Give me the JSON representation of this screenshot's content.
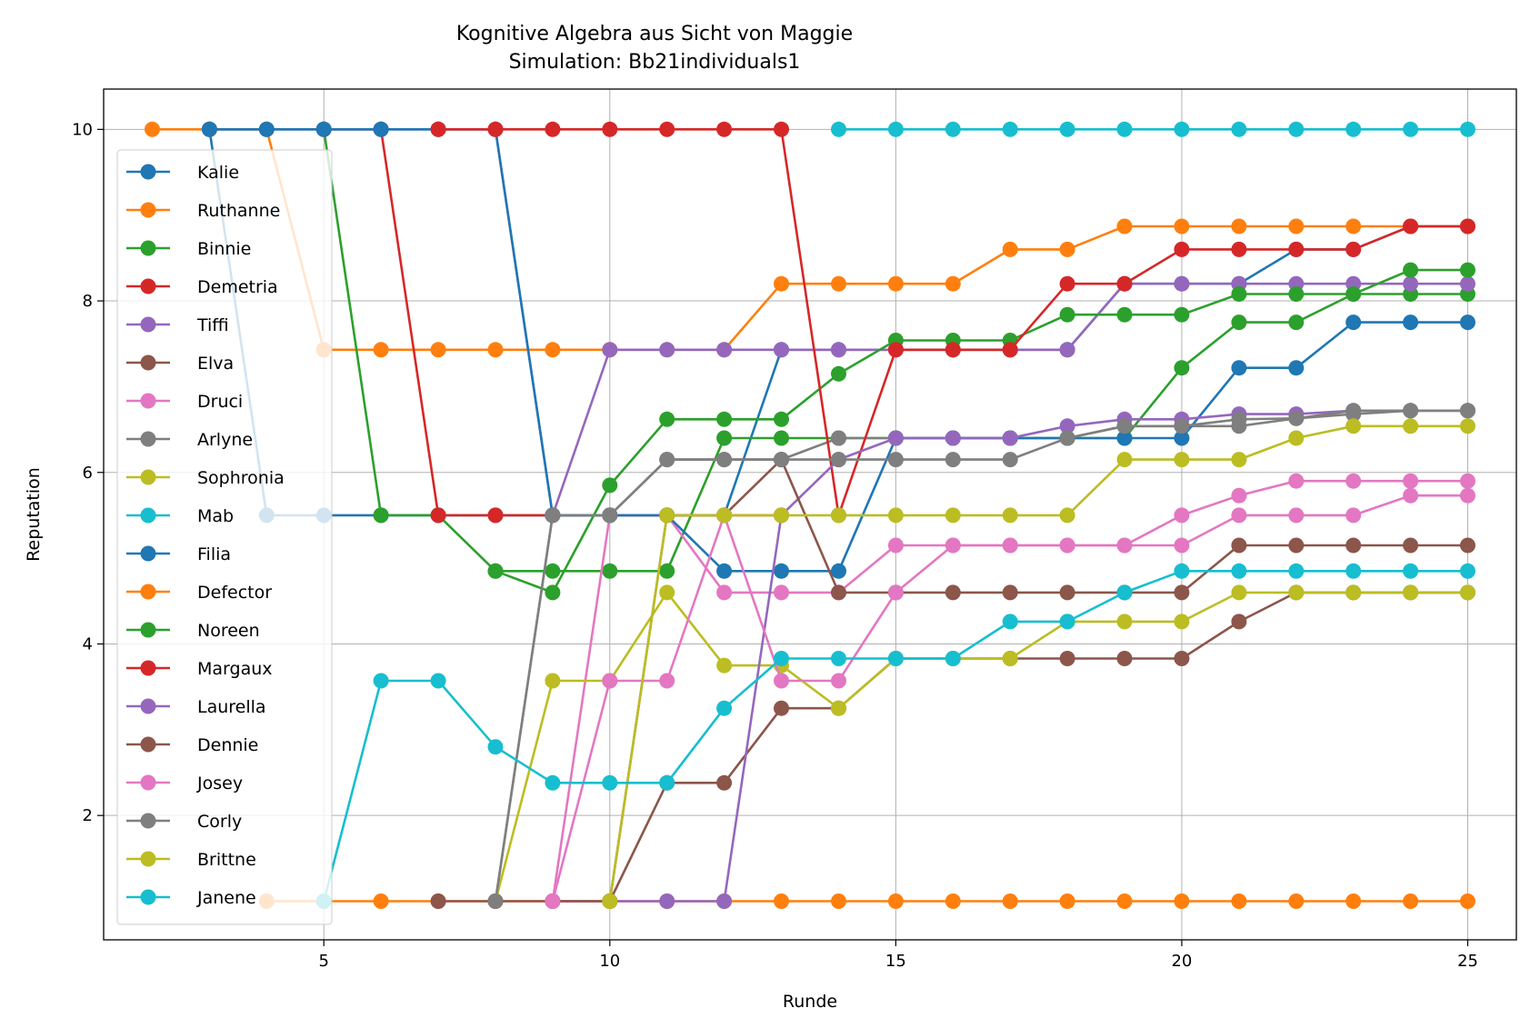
{
  "chart_data": {
    "type": "line",
    "title": "Kognitive Algebra aus Sicht von Maggie",
    "subtitle": "Simulation: Bb21individuals1",
    "xlabel": "Runde",
    "ylabel": "Reputation",
    "xlim": [
      1.15,
      25.85
    ],
    "ylim": [
      0.55,
      10.47
    ],
    "xticks": [
      5,
      10,
      15,
      20,
      25
    ],
    "yticks": [
      2,
      4,
      6,
      8,
      10
    ],
    "grid": true,
    "legend_position": "left",
    "series": [
      {
        "name": "Kalie",
        "color": "#1f77b4",
        "x": [
          3,
          4,
          5,
          6,
          7,
          8,
          9,
          10,
          11,
          12,
          13,
          14,
          15,
          16,
          17,
          18,
          19,
          20,
          21,
          22,
          23,
          24,
          25
        ],
        "y": [
          10,
          5.5,
          5.5,
          5.5,
          5.5,
          5.5,
          5.5,
          5.5,
          5.5,
          5.5,
          7.43,
          7.43,
          7.43,
          7.43,
          7.43,
          7.43,
          8.2,
          8.2,
          8.2,
          8.6,
          8.6,
          8.87,
          8.87
        ]
      },
      {
        "name": "Ruthanne",
        "color": "#ff7f0e",
        "x": [
          2,
          3,
          4,
          5,
          6,
          7,
          8,
          9,
          10,
          11,
          12,
          13,
          14,
          15,
          16,
          17,
          18,
          19,
          20,
          21,
          22,
          23,
          24,
          25
        ],
        "y": [
          10,
          10,
          10,
          7.43,
          7.43,
          7.43,
          7.43,
          7.43,
          7.43,
          7.43,
          7.43,
          8.2,
          8.2,
          8.2,
          8.2,
          8.6,
          8.6,
          8.87,
          8.87,
          8.87,
          8.87,
          8.87,
          8.87,
          8.87
        ]
      },
      {
        "name": "Binnie",
        "color": "#2ca02c",
        "x": [
          5,
          6,
          7,
          8,
          9,
          10,
          11,
          12,
          13,
          14,
          15,
          16,
          17,
          18,
          19,
          20,
          21,
          22,
          23,
          24,
          25
        ],
        "y": [
          10,
          5.5,
          5.5,
          4.85,
          4.85,
          4.85,
          4.85,
          6.4,
          6.4,
          6.4,
          6.4,
          6.4,
          6.4,
          6.4,
          6.4,
          7.22,
          7.75,
          7.75,
          8.08,
          8.08,
          8.08
        ]
      },
      {
        "name": "Demetria",
        "color": "#d62728",
        "x": [
          5,
          6,
          7,
          8,
          9,
          10,
          11,
          12,
          13
        ],
        "y": [
          10,
          10,
          5.5,
          5.5,
          5.5,
          5.5,
          5.5,
          5.5,
          5.5
        ]
      },
      {
        "name": "Tiffi",
        "color": "#9467bd",
        "x": [
          3,
          4,
          5,
          6,
          7,
          8,
          9,
          10,
          11,
          12,
          13,
          14,
          15,
          16,
          17,
          18,
          19,
          20,
          21,
          22,
          23,
          24,
          25
        ],
        "y": [
          10,
          10,
          10,
          10,
          10,
          10,
          5.5,
          7.43,
          7.43,
          7.43,
          7.43,
          7.43,
          7.43,
          7.43,
          7.43,
          7.43,
          8.2,
          8.2,
          8.2,
          8.2,
          8.2,
          8.2,
          8.2
        ]
      },
      {
        "name": "Elva",
        "color": "#8c564b",
        "x": [
          10,
          11,
          12,
          13,
          14,
          15,
          16,
          17,
          18,
          19,
          20,
          21,
          22,
          23,
          24,
          25
        ],
        "y": [
          1,
          2.38,
          2.38,
          3.25,
          3.25,
          3.83,
          3.83,
          3.83,
          3.83,
          3.83,
          3.83,
          4.26,
          4.6,
          4.6,
          4.6,
          4.6
        ]
      },
      {
        "name": "Druci",
        "color": "#e377c2",
        "x": [
          9,
          10,
          11,
          12,
          13,
          14,
          15,
          16,
          17,
          18,
          19,
          20,
          21,
          22,
          23,
          24,
          25
        ],
        "y": [
          1,
          5.5,
          5.5,
          4.6,
          4.6,
          4.6,
          5.15,
          5.15,
          5.15,
          5.15,
          5.15,
          5.15,
          5.5,
          5.5,
          5.5,
          5.73,
          5.73
        ]
      },
      {
        "name": "Arlyne",
        "color": "#7f7f7f",
        "x": [
          8,
          9,
          10,
          11,
          12,
          13,
          14,
          15,
          16,
          17,
          18,
          19,
          20,
          21,
          22,
          23,
          24,
          25
        ],
        "y": [
          1,
          5.5,
          5.5,
          6.15,
          6.15,
          6.15,
          6.4,
          6.4,
          6.4,
          6.4,
          6.4,
          6.54,
          6.54,
          6.54,
          6.63,
          6.68,
          6.72,
          6.72
        ]
      },
      {
        "name": "Sophronia",
        "color": "#bcbd22",
        "x": [
          8,
          9,
          10,
          11,
          12,
          13,
          14,
          15,
          16,
          17,
          18,
          19,
          20,
          21,
          22,
          23,
          24,
          25
        ],
        "y": [
          1,
          3.57,
          3.57,
          4.6,
          3.75,
          3.75,
          3.25,
          3.83,
          3.83,
          3.83,
          4.26,
          4.26,
          4.26,
          4.6,
          4.6,
          4.6,
          4.6,
          4.6
        ]
      },
      {
        "name": "Mab",
        "color": "#17becf",
        "x": [
          14,
          15,
          16,
          17,
          18,
          19,
          20,
          21,
          22,
          23,
          24,
          25
        ],
        "y": [
          10,
          10,
          10,
          10,
          10,
          10,
          10,
          10,
          10,
          10,
          10,
          10
        ]
      },
      {
        "name": "Filia",
        "color": "#1f77b4",
        "x": [
          3,
          4,
          5,
          6,
          7,
          8,
          9,
          10,
          11,
          12,
          13,
          14,
          15,
          16,
          17,
          18,
          19,
          20,
          21,
          22,
          23,
          24,
          25
        ],
        "y": [
          10,
          10,
          10,
          10,
          10,
          10,
          5.5,
          5.5,
          5.5,
          4.85,
          4.85,
          4.85,
          6.4,
          6.4,
          6.4,
          6.4,
          6.4,
          6.4,
          7.22,
          7.22,
          7.75,
          7.75,
          7.75
        ]
      },
      {
        "name": "Defector",
        "color": "#ff7f0e",
        "x": [
          4,
          5,
          6,
          7,
          8,
          9,
          10,
          11,
          12,
          13,
          14,
          15,
          16,
          17,
          18,
          19,
          20,
          21,
          22,
          23,
          24,
          25
        ],
        "y": [
          1,
          1,
          1,
          1,
          1,
          1,
          1,
          1,
          1,
          1,
          1,
          1,
          1,
          1,
          1,
          1,
          1,
          1,
          1,
          1,
          1,
          1
        ]
      },
      {
        "name": "Noreen",
        "color": "#2ca02c",
        "x": [
          8,
          9,
          10,
          11,
          12,
          13,
          14,
          15,
          16,
          17,
          18,
          19,
          20,
          21,
          22,
          23,
          24,
          25
        ],
        "y": [
          4.85,
          4.6,
          5.85,
          6.62,
          6.62,
          6.62,
          7.15,
          7.54,
          7.54,
          7.54,
          7.84,
          7.84,
          7.84,
          8.08,
          8.08,
          8.08,
          8.36,
          8.36
        ]
      },
      {
        "name": "Margaux",
        "color": "#d62728",
        "x": [
          7,
          8,
          9,
          10,
          11,
          12,
          13,
          14,
          15,
          16,
          17,
          18,
          19,
          20,
          21,
          22,
          23,
          24,
          25
        ],
        "y": [
          10,
          10,
          10,
          10,
          10,
          10,
          10,
          5.5,
          7.43,
          7.43,
          7.43,
          8.2,
          8.2,
          8.6,
          8.6,
          8.6,
          8.6,
          8.87,
          8.87
        ]
      },
      {
        "name": "Laurella",
        "color": "#9467bd",
        "x": [
          9,
          10,
          11,
          12,
          13,
          14,
          15,
          16,
          17,
          18,
          19,
          20,
          21,
          22,
          23,
          24,
          25
        ],
        "y": [
          1,
          1,
          1,
          1,
          5.5,
          6.15,
          6.4,
          6.4,
          6.4,
          6.54,
          6.62,
          6.62,
          6.68,
          6.68,
          6.72,
          6.72,
          6.72
        ]
      },
      {
        "name": "Dennie",
        "color": "#8c564b",
        "x": [
          7,
          8,
          9,
          10,
          11,
          12,
          13,
          14,
          15,
          16,
          17,
          18,
          19,
          20,
          21,
          22,
          23,
          24,
          25
        ],
        "y": [
          1,
          1,
          1,
          1,
          5.5,
          5.5,
          6.15,
          4.6,
          4.6,
          4.6,
          4.6,
          4.6,
          4.6,
          4.6,
          5.15,
          5.15,
          5.15,
          5.15,
          5.15
        ]
      },
      {
        "name": "Josey",
        "color": "#e377c2",
        "x": [
          9,
          10,
          11,
          12,
          13,
          14,
          15,
          16,
          17,
          18,
          19,
          20,
          21,
          22,
          23,
          24,
          25
        ],
        "y": [
          1,
          3.57,
          3.57,
          5.5,
          3.57,
          3.57,
          4.6,
          5.15,
          5.15,
          5.15,
          5.15,
          5.5,
          5.73,
          5.9,
          5.9,
          5.9,
          5.9
        ]
      },
      {
        "name": "Corly",
        "color": "#7f7f7f",
        "x": [
          8,
          9,
          10,
          11,
          12,
          13,
          14,
          15,
          16,
          17,
          18,
          19,
          20,
          21,
          22,
          23,
          24,
          25
        ],
        "y": [
          1,
          5.5,
          5.5,
          6.15,
          6.15,
          6.15,
          6.15,
          6.15,
          6.15,
          6.15,
          6.4,
          6.54,
          6.54,
          6.62,
          6.63,
          6.72,
          6.72,
          6.72
        ]
      },
      {
        "name": "Brittne",
        "color": "#bcbd22",
        "x": [
          10,
          11,
          12,
          13,
          14,
          15,
          16,
          17,
          18,
          19,
          20,
          21,
          22,
          23,
          24,
          25
        ],
        "y": [
          1,
          5.5,
          5.5,
          5.5,
          5.5,
          5.5,
          5.5,
          5.5,
          5.5,
          6.15,
          6.15,
          6.15,
          6.4,
          6.54,
          6.54,
          6.54
        ]
      },
      {
        "name": "Janene",
        "color": "#17becf",
        "x": [
          5,
          6,
          7,
          8,
          9,
          10,
          11,
          12,
          13,
          14,
          15,
          16,
          17,
          18,
          19,
          20,
          21,
          22,
          23,
          24,
          25
        ],
        "y": [
          1,
          3.57,
          3.57,
          2.8,
          2.38,
          2.38,
          2.38,
          3.25,
          3.83,
          3.83,
          3.83,
          3.83,
          4.26,
          4.26,
          4.6,
          4.85,
          4.85,
          4.85,
          4.85,
          4.85,
          4.85
        ]
      }
    ]
  }
}
